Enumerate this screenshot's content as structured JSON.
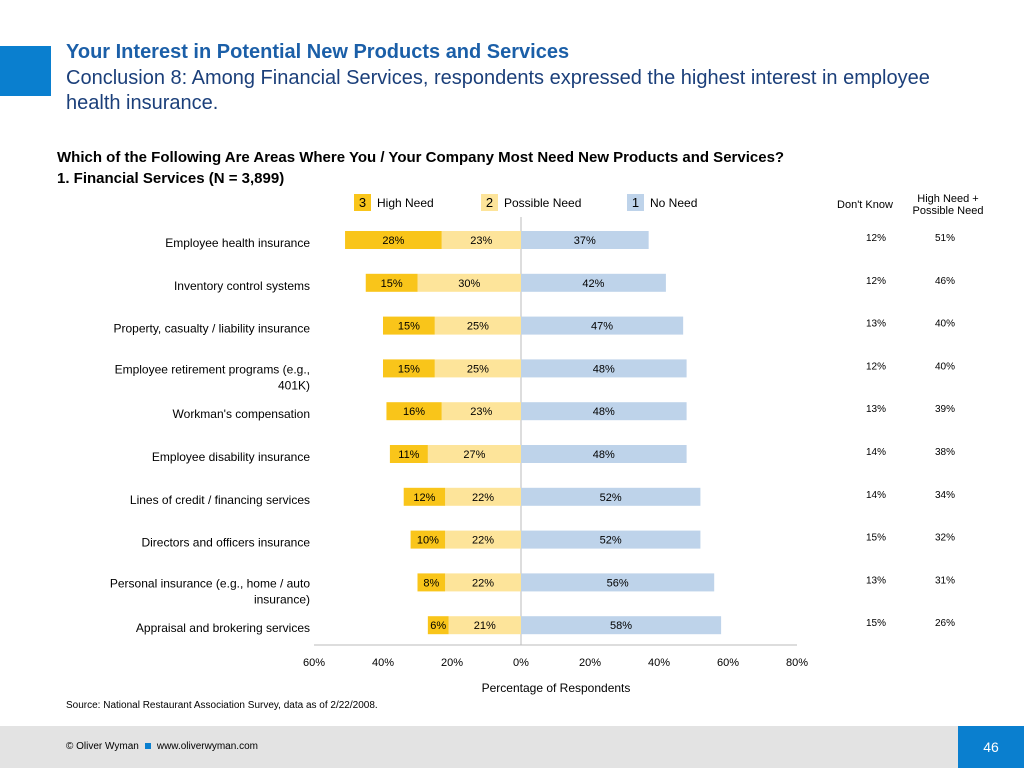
{
  "header": {
    "title": "Your Interest in Potential New Products and Services",
    "subtitle": "Conclusion 8: Among Financial Services, respondents expressed the highest interest in employee health insurance."
  },
  "question": "Which of the Following Are Areas Where You / Your Company Most Need New Products and Services?",
  "subquestion": "1. Financial Services (N = 3,899)",
  "legend": [
    {
      "num": "3",
      "label": "High Need",
      "color": "#f9c51a"
    },
    {
      "num": "2",
      "label": "Possible Need",
      "color": "#fde49a"
    },
    {
      "num": "1",
      "label": "No Need",
      "color": "#bed3ea"
    }
  ],
  "columns": {
    "dont_know": "Don't Know",
    "high_possible": "High Need + Possible Need"
  },
  "chart_data": {
    "type": "bar",
    "orientation": "horizontal-diverging",
    "xlabel": "Percentage of Respondents",
    "xlim": [
      -60,
      80
    ],
    "xticks": [
      -60,
      -40,
      -20,
      0,
      20,
      40,
      60,
      80
    ],
    "xtick_labels": [
      "60%",
      "40%",
      "20%",
      "0%",
      "20%",
      "40%",
      "60%",
      "80%"
    ],
    "categories": [
      "Employee health insurance",
      "Inventory control systems",
      "Property, casualty / liability insurance",
      "Employee retirement programs (e.g., 401K)",
      "Workman's compensation",
      "Employee disability insurance",
      "Lines of credit / financing services",
      "Directors and officers insurance",
      "Personal insurance (e.g., home / auto insurance)",
      "Appraisal and brokering services"
    ],
    "series": [
      {
        "name": "High Need",
        "values": [
          28,
          15,
          15,
          15,
          16,
          11,
          12,
          10,
          8,
          6
        ]
      },
      {
        "name": "Possible Need",
        "values": [
          23,
          30,
          25,
          25,
          23,
          27,
          22,
          22,
          22,
          21
        ]
      },
      {
        "name": "No Need",
        "values": [
          37,
          42,
          47,
          48,
          48,
          48,
          52,
          52,
          56,
          58
        ]
      }
    ],
    "dont_know": [
      12,
      12,
      13,
      12,
      13,
      14,
      14,
      15,
      13,
      15
    ],
    "high_plus_possible": [
      51,
      46,
      40,
      40,
      39,
      38,
      34,
      32,
      31,
      26
    ],
    "colors": {
      "high": "#f9c51a",
      "possible": "#fde49a",
      "no_need": "#bed3ea",
      "axis": "#bbbbbb"
    }
  },
  "source": "Source: National Restaurant Association Survey, data as of 2/22/2008.",
  "footer": {
    "copyright": "© Oliver Wyman",
    "website": "www.oliverwyman.com",
    "page": "46"
  }
}
